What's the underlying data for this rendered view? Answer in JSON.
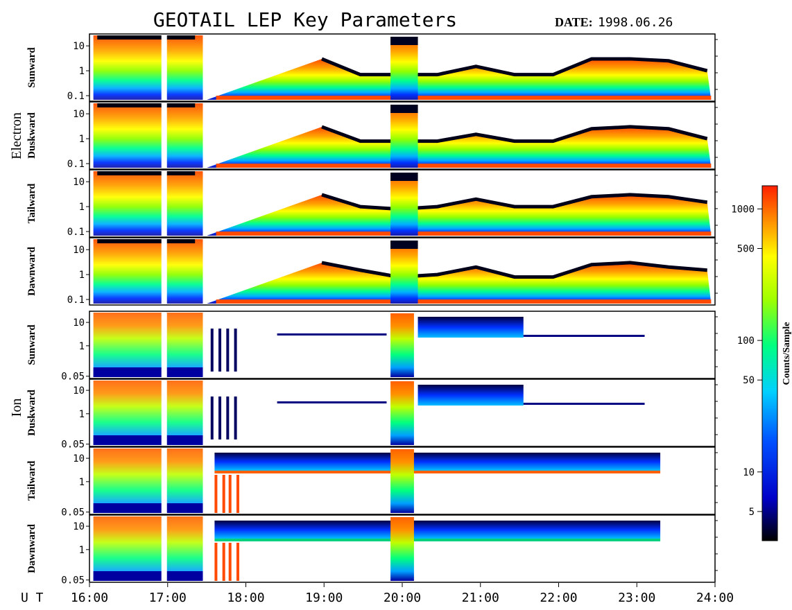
{
  "chart_data": {
    "type": "heatmap",
    "title": "GEOTAIL LEP Key Parameters",
    "date_label": "DATE:",
    "date_value": "1998.06.26",
    "x_axis_label": "U T",
    "x_ticks": [
      "16:00",
      "17:00",
      "18:00",
      "19:00",
      "20:00",
      "21:00",
      "22:00",
      "23:00",
      "24:00"
    ],
    "x_range_hours": [
      16,
      24
    ],
    "groups": [
      {
        "name": "Electron",
        "y_ticks": [
          "10",
          "1",
          "0.1"
        ],
        "y_tick_values": [
          10,
          1,
          0.1
        ],
        "panels": [
          {
            "name": "Sunward",
            "upper_level": [
              20,
              20,
              20,
              20,
              3,
              0.7,
              0.7,
              0.7,
              1.5,
              0.7,
              0.7,
              3,
              3,
              2.5,
              1
            ]
          },
          {
            "name": "Duskward",
            "upper_level": [
              20,
              20,
              20,
              20,
              3,
              0.8,
              0.8,
              0.8,
              1.5,
              0.8,
              0.8,
              2.5,
              3,
              2.5,
              1
            ]
          },
          {
            "name": "Tailward",
            "upper_level": [
              20,
              20,
              20,
              20,
              3,
              1,
              0.8,
              1,
              2,
              1,
              1,
              2.5,
              3,
              2.5,
              1.5
            ]
          },
          {
            "name": "Dawnward",
            "upper_level": [
              20,
              20,
              20,
              20,
              3,
              1.5,
              0.8,
              1,
              2,
              0.8,
              0.8,
              2.5,
              3,
              2,
              1.5
            ]
          }
        ]
      },
      {
        "name": "Ion",
        "y_ticks": [
          "10",
          "1",
          "0.05"
        ],
        "y_tick_values": [
          10,
          1,
          0.05
        ],
        "panels": [
          {
            "name": "Sunward"
          },
          {
            "name": "Duskward"
          },
          {
            "name": "Tailward"
          },
          {
            "name": "Dawnward"
          }
        ]
      }
    ],
    "colorbar": {
      "label": "Counts/Sample",
      "ticks": [
        "1000",
        "500",
        "100",
        "50",
        "10",
        "5"
      ],
      "tick_values": [
        1000,
        500,
        100,
        50,
        10,
        5
      ],
      "range": [
        3,
        1500
      ],
      "scale": "log",
      "colormap": [
        "#000000",
        "#0000ff",
        "#00c0ff",
        "#00ff80",
        "#80ff00",
        "#ffff00",
        "#ffa000",
        "#ff4000"
      ]
    }
  }
}
